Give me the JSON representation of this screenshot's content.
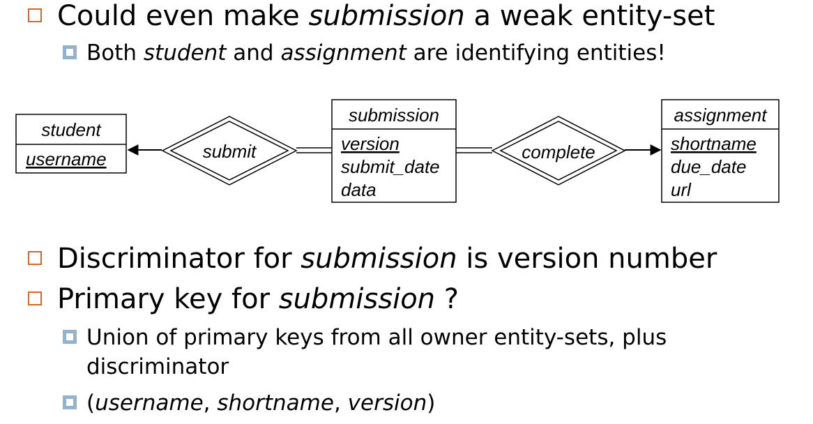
{
  "bullets": {
    "b1": {
      "pre": "Could even make ",
      "em": "submission",
      "post": " a weak entity-set"
    },
    "b1_sub": {
      "pre": "Both ",
      "em1": "student",
      "mid": " and ",
      "em2": "assignment",
      "post": " are identifying entities!"
    },
    "b2": {
      "pre": "Discriminator for ",
      "em": "submission",
      "post": " is version number"
    },
    "b3": {
      "pre": "Primary key for ",
      "em": "submission",
      "post": " ?"
    },
    "b3_sub1": {
      "line1": "Union of primary keys from all owner entity-sets, plus",
      "line2": "discriminator"
    },
    "b3_sub2": {
      "open": "(",
      "k1": "username",
      "sep1": ", ",
      "k2": "shortname",
      "sep2": ", ",
      "k3": "version",
      "close": ")"
    }
  },
  "diagram": {
    "student": {
      "name": "student",
      "attrs": [
        "username"
      ]
    },
    "submit": {
      "name": "submit"
    },
    "submission": {
      "name": "submission",
      "attrs": [
        "version",
        "submit_date",
        "data"
      ]
    },
    "complete": {
      "name": "complete"
    },
    "assignment": {
      "name": "assignment",
      "attrs": [
        "shortname",
        "due_date",
        "url"
      ]
    }
  },
  "colors": {
    "bullet_l1": "#d0682e",
    "bullet_l2": "#93b2cc"
  }
}
